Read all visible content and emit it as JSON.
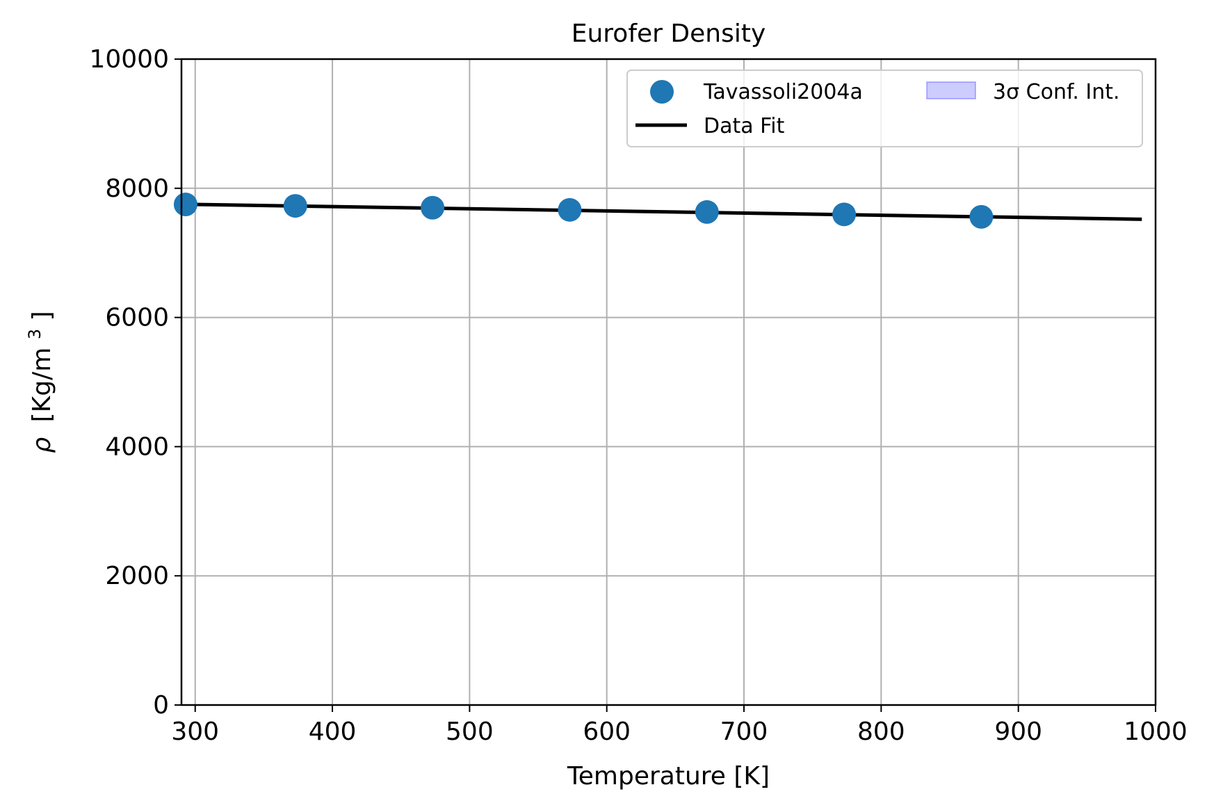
{
  "chart_data": {
    "type": "scatter",
    "title": "Eurofer Density",
    "xlabel": "Temperature [K]",
    "ylabel_symbol": "ρ",
    "ylabel_unit_prefix": "[Kg/m",
    "ylabel_unit_exp": "3",
    "ylabel_unit_suffix": "]",
    "xlim": [
      290,
      1000
    ],
    "ylim": [
      0,
      10000
    ],
    "xticks": [
      300,
      400,
      500,
      600,
      700,
      800,
      900,
      1000
    ],
    "yticks": [
      0,
      2000,
      4000,
      6000,
      8000,
      10000
    ],
    "grid": true,
    "legend_position": "upper-right",
    "series": [
      {
        "name": "Tavassoli2004a",
        "kind": "scatter",
        "color": "#1f77b4",
        "x": [
          293,
          373,
          473,
          573,
          673,
          773,
          873
        ],
        "y": [
          7750,
          7728,
          7699,
          7666,
          7633,
          7596,
          7558
        ]
      },
      {
        "name": "Data Fit",
        "kind": "line",
        "color": "#000000",
        "x": [
          298,
          990
        ],
        "y": [
          7750,
          7520
        ]
      },
      {
        "name": "3σ Conf. Int.",
        "kind": "band",
        "color": "#0000ff"
      }
    ]
  }
}
